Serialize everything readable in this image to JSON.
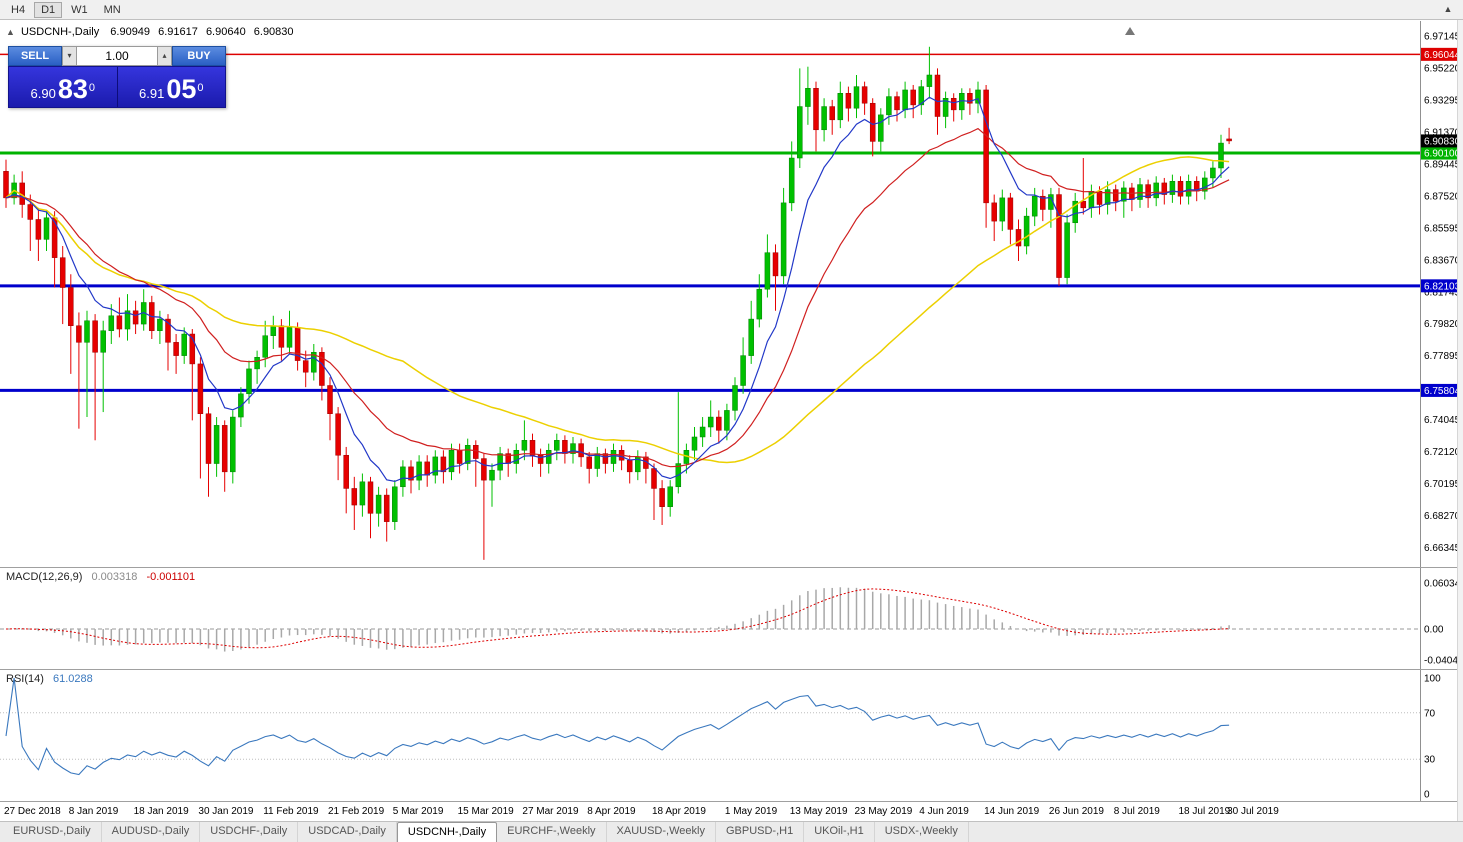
{
  "toolbar": {
    "periods": [
      "H4",
      "D1",
      "W1",
      "MN"
    ],
    "active": "D1",
    "overflow_icon": "chevron-up"
  },
  "chart_header": {
    "symbol": "USDCNH-,Daily",
    "open": "6.90949",
    "high": "6.91617",
    "low": "6.90640",
    "close": "6.90830"
  },
  "trade_panel": {
    "sell_label": "SELL",
    "buy_label": "BUY",
    "volume": "1.00",
    "sell_price": {
      "prefix": "6.90",
      "big": "83",
      "sup": "0"
    },
    "buy_price": {
      "prefix": "6.91",
      "big": "05",
      "sup": "0"
    }
  },
  "indicators": {
    "macd": {
      "label": "MACD(12,26,9)",
      "main_value": "0.003318",
      "signal_value": "-0.001101",
      "scale": [
        "0.060342",
        "0.00",
        "-0.040415"
      ],
      "scale_values": [
        0.060342,
        0,
        -0.040415
      ]
    },
    "rsi": {
      "label": "RSI(14)",
      "value": "61.0288",
      "scale": [
        "100",
        "70",
        "30",
        "0"
      ],
      "scale_values": [
        100,
        70,
        30,
        0
      ],
      "levels": [
        70,
        30
      ]
    }
  },
  "chart_data": {
    "type": "candlestick",
    "symbol": "USDCNH",
    "timeframe": "Daily",
    "price_axis": {
      "min": 6.6535,
      "max": 6.9745,
      "decimals": 5,
      "ticks": [
        "6.97145",
        "6.95220",
        "6.93295",
        "6.91370",
        "6.89445",
        "6.87520",
        "6.85595",
        "6.83670",
        "6.81745",
        "6.79820",
        "6.77895",
        "6.75970",
        "6.74045",
        "6.72120",
        "6.70195",
        "6.68270",
        "6.66345"
      ]
    },
    "hlines": [
      {
        "price": 6.96044,
        "label": "6.96044",
        "color": "#dd0000",
        "width": 1.5
      },
      {
        "price": 6.901,
        "label": "6.90100",
        "color": "#00b300",
        "width": 3
      },
      {
        "price": 6.82103,
        "label": "6.82103",
        "color": "#0000cc",
        "width": 3
      },
      {
        "price": 6.75804,
        "label": "6.75804",
        "color": "#0000cc",
        "width": 3
      }
    ],
    "current_price": {
      "value": 6.9083,
      "label": "6.90830",
      "bg": "#000000"
    },
    "colors": {
      "up": "#00c000",
      "down": "#e60000",
      "ma_fast": "#2238c8",
      "ma_mid": "#d02020",
      "ma_slow": "#ecd000",
      "macd_bar": "#a8a8a8",
      "macd_signal": "#dd0000",
      "rsi": "#3a78be"
    },
    "ma_periods": {
      "fast": 8,
      "mid": 21,
      "slow": 50
    },
    "x_axis": {
      "labels": [
        {
          "label": "27 Dec 2018",
          "i": 0
        },
        {
          "label": "8 Jan 2019",
          "i": 8
        },
        {
          "label": "18 Jan 2019",
          "i": 16
        },
        {
          "label": "30 Jan 2019",
          "i": 24
        },
        {
          "label": "11 Feb 2019",
          "i": 32
        },
        {
          "label": "21 Feb 2019",
          "i": 40
        },
        {
          "label": "5 Mar 2019",
          "i": 48
        },
        {
          "label": "15 Mar 2019",
          "i": 56
        },
        {
          "label": "27 Mar 2019",
          "i": 64
        },
        {
          "label": "8 Apr 2019",
          "i": 72
        },
        {
          "label": "18 Apr 2019",
          "i": 80
        },
        {
          "label": "1 May 2019",
          "i": 89
        },
        {
          "label": "13 May 2019",
          "i": 97
        },
        {
          "label": "23 May 2019",
          "i": 105
        },
        {
          "label": "4 Jun 2019",
          "i": 113
        },
        {
          "label": "14 Jun 2019",
          "i": 121
        },
        {
          "label": "26 Jun 2019",
          "i": 129
        },
        {
          "label": "8 Jul 2019",
          "i": 137
        },
        {
          "label": "18 Jul 2019",
          "i": 145
        },
        {
          "label": "30 Jul 2019",
          "i": 151
        }
      ]
    },
    "candles": [
      [
        6.89,
        6.897,
        6.868,
        6.874
      ],
      [
        6.874,
        6.888,
        6.87,
        6.883
      ],
      [
        6.883,
        6.89,
        6.862,
        6.87
      ],
      [
        6.87,
        6.876,
        6.842,
        6.861
      ],
      [
        6.861,
        6.868,
        6.836,
        6.849
      ],
      [
        6.849,
        6.866,
        6.842,
        6.862
      ],
      [
        6.862,
        6.866,
        6.82,
        6.838
      ],
      [
        6.838,
        6.845,
        6.798,
        6.82
      ],
      [
        6.82,
        6.828,
        6.768,
        6.797
      ],
      [
        6.797,
        6.805,
        6.735,
        6.787
      ],
      [
        6.787,
        6.806,
        6.742,
        6.8
      ],
      [
        6.8,
        6.804,
        6.728,
        6.781
      ],
      [
        6.781,
        6.8,
        6.745,
        6.794
      ],
      [
        6.794,
        6.81,
        6.786,
        6.803
      ],
      [
        6.803,
        6.814,
        6.79,
        6.795
      ],
      [
        6.795,
        6.816,
        6.788,
        6.806
      ],
      [
        6.806,
        6.812,
        6.792,
        6.798
      ],
      [
        6.798,
        6.819,
        6.794,
        6.811
      ],
      [
        6.811,
        6.815,
        6.789,
        6.794
      ],
      [
        6.794,
        6.806,
        6.786,
        6.801
      ],
      [
        6.801,
        6.804,
        6.77,
        6.787
      ],
      [
        6.787,
        6.792,
        6.768,
        6.779
      ],
      [
        6.779,
        6.796,
        6.774,
        6.792
      ],
      [
        6.792,
        6.795,
        6.74,
        6.774
      ],
      [
        6.774,
        6.778,
        6.705,
        6.744
      ],
      [
        6.744,
        6.748,
        6.694,
        6.714
      ],
      [
        6.714,
        6.742,
        6.706,
        6.737
      ],
      [
        6.737,
        6.74,
        6.697,
        6.709
      ],
      [
        6.709,
        6.746,
        6.702,
        6.742
      ],
      [
        6.742,
        6.76,
        6.736,
        6.756
      ],
      [
        6.756,
        6.776,
        6.75,
        6.771
      ],
      [
        6.771,
        6.782,
        6.762,
        6.778
      ],
      [
        6.778,
        6.8,
        6.772,
        6.791
      ],
      [
        6.791,
        6.803,
        6.783,
        6.797
      ],
      [
        6.797,
        6.801,
        6.776,
        6.784
      ],
      [
        6.784,
        6.806,
        6.78,
        6.796
      ],
      [
        6.796,
        6.799,
        6.77,
        6.776
      ],
      [
        6.776,
        6.782,
        6.76,
        6.769
      ],
      [
        6.769,
        6.786,
        6.764,
        6.781
      ],
      [
        6.781,
        6.784,
        6.752,
        6.761
      ],
      [
        6.761,
        6.766,
        6.728,
        6.744
      ],
      [
        6.744,
        6.748,
        6.704,
        6.719
      ],
      [
        6.719,
        6.724,
        6.684,
        6.699
      ],
      [
        6.699,
        6.706,
        6.674,
        6.689
      ],
      [
        6.689,
        6.708,
        6.682,
        6.703
      ],
      [
        6.703,
        6.706,
        6.669,
        6.684
      ],
      [
        6.684,
        6.7,
        6.676,
        6.695
      ],
      [
        6.695,
        6.699,
        6.667,
        6.679
      ],
      [
        6.679,
        6.704,
        6.674,
        6.7
      ],
      [
        6.7,
        6.716,
        6.694,
        6.712
      ],
      [
        6.712,
        6.716,
        6.696,
        6.704
      ],
      [
        6.704,
        6.719,
        6.698,
        6.715
      ],
      [
        6.715,
        6.719,
        6.7,
        6.707
      ],
      [
        6.707,
        6.722,
        6.702,
        6.718
      ],
      [
        6.718,
        6.722,
        6.702,
        6.709
      ],
      [
        6.709,
        6.726,
        6.704,
        6.722
      ],
      [
        6.722,
        6.726,
        6.708,
        6.714
      ],
      [
        6.714,
        6.729,
        6.71,
        6.725
      ],
      [
        6.725,
        6.728,
        6.7,
        6.717
      ],
      [
        6.717,
        6.72,
        6.656,
        6.704
      ],
      [
        6.704,
        6.714,
        6.688,
        6.71
      ],
      [
        6.71,
        6.724,
        6.704,
        6.72
      ],
      [
        6.72,
        6.723,
        6.706,
        6.714
      ],
      [
        6.714,
        6.726,
        6.708,
        6.722
      ],
      [
        6.722,
        6.74,
        6.716,
        6.728
      ],
      [
        6.728,
        6.732,
        6.712,
        6.719
      ],
      [
        6.719,
        6.723,
        6.706,
        6.714
      ],
      [
        6.714,
        6.726,
        6.708,
        6.722
      ],
      [
        6.722,
        6.732,
        6.716,
        6.728
      ],
      [
        6.728,
        6.731,
        6.714,
        6.72
      ],
      [
        6.72,
        6.73,
        6.714,
        6.726
      ],
      [
        6.726,
        6.729,
        6.712,
        6.718
      ],
      [
        6.718,
        6.721,
        6.702,
        6.711
      ],
      [
        6.711,
        6.724,
        6.706,
        6.72
      ],
      [
        6.72,
        6.723,
        6.708,
        6.714
      ],
      [
        6.714,
        6.726,
        6.709,
        6.722
      ],
      [
        6.722,
        6.725,
        6.71,
        6.716
      ],
      [
        6.716,
        6.719,
        6.702,
        6.709
      ],
      [
        6.709,
        6.722,
        6.704,
        6.718
      ],
      [
        6.718,
        6.721,
        6.702,
        6.711
      ],
      [
        6.711,
        6.714,
        6.68,
        6.699
      ],
      [
        6.699,
        6.704,
        6.677,
        6.688
      ],
      [
        6.688,
        6.704,
        6.682,
        6.7
      ],
      [
        6.7,
        6.757,
        6.696,
        6.714
      ],
      [
        6.714,
        6.726,
        6.708,
        6.722
      ],
      [
        6.722,
        6.736,
        6.716,
        6.73
      ],
      [
        6.73,
        6.742,
        6.724,
        6.736
      ],
      [
        6.736,
        6.752,
        6.73,
        6.742
      ],
      [
        6.742,
        6.746,
        6.726,
        6.734
      ],
      [
        6.734,
        6.75,
        6.728,
        6.746
      ],
      [
        6.746,
        6.766,
        6.74,
        6.761
      ],
      [
        6.761,
        6.79,
        6.756,
        6.779
      ],
      [
        6.779,
        6.812,
        6.774,
        6.801
      ],
      [
        6.801,
        6.828,
        6.796,
        6.819
      ],
      [
        6.819,
        6.852,
        6.814,
        6.841
      ],
      [
        6.841,
        6.846,
        6.806,
        6.827
      ],
      [
        6.827,
        6.88,
        6.822,
        6.871
      ],
      [
        6.871,
        6.908,
        6.866,
        6.898
      ],
      [
        6.898,
        6.952,
        6.892,
        6.929
      ],
      [
        6.929,
        6.953,
        6.918,
        6.94
      ],
      [
        6.94,
        6.944,
        6.902,
        6.915
      ],
      [
        6.915,
        6.934,
        6.908,
        6.929
      ],
      [
        6.929,
        6.933,
        6.912,
        6.921
      ],
      [
        6.921,
        6.944,
        6.916,
        6.937
      ],
      [
        6.937,
        6.941,
        6.92,
        6.928
      ],
      [
        6.928,
        6.948,
        6.922,
        6.941
      ],
      [
        6.941,
        6.944,
        6.924,
        6.931
      ],
      [
        6.931,
        6.934,
        6.899,
        6.908
      ],
      [
        6.908,
        6.928,
        6.902,
        6.924
      ],
      [
        6.924,
        6.94,
        6.918,
        6.935
      ],
      [
        6.935,
        6.938,
        6.92,
        6.927
      ],
      [
        6.927,
        6.944,
        6.922,
        6.939
      ],
      [
        6.939,
        6.942,
        6.922,
        6.93
      ],
      [
        6.93,
        6.945,
        6.924,
        6.941
      ],
      [
        6.941,
        6.965,
        6.934,
        6.948
      ],
      [
        6.948,
        6.952,
        6.912,
        6.923
      ],
      [
        6.923,
        6.938,
        6.916,
        6.934
      ],
      [
        6.934,
        6.937,
        6.92,
        6.927
      ],
      [
        6.927,
        6.94,
        6.921,
        6.937
      ],
      [
        6.937,
        6.94,
        6.924,
        6.931
      ],
      [
        6.931,
        6.944,
        6.925,
        6.939
      ],
      [
        6.939,
        6.942,
        6.856,
        6.871
      ],
      [
        6.871,
        6.876,
        6.848,
        6.86
      ],
      [
        6.86,
        6.879,
        6.854,
        6.874
      ],
      [
        6.874,
        6.877,
        6.846,
        6.855
      ],
      [
        6.855,
        6.861,
        6.836,
        6.845
      ],
      [
        6.845,
        6.868,
        6.84,
        6.863
      ],
      [
        6.863,
        6.88,
        6.857,
        6.875
      ],
      [
        6.875,
        6.879,
        6.86,
        6.867
      ],
      [
        6.867,
        6.88,
        6.856,
        6.876
      ],
      [
        6.876,
        6.88,
        6.821,
        6.826
      ],
      [
        6.826,
        6.864,
        6.822,
        6.859
      ],
      [
        6.859,
        6.877,
        6.853,
        6.872
      ],
      [
        6.872,
        6.898,
        6.864,
        6.868
      ],
      [
        6.868,
        6.882,
        6.862,
        6.878
      ],
      [
        6.878,
        6.881,
        6.864,
        6.87
      ],
      [
        6.87,
        6.884,
        6.864,
        6.879
      ],
      [
        6.879,
        6.882,
        6.866,
        6.872
      ],
      [
        6.872,
        6.884,
        6.862,
        6.88
      ],
      [
        6.88,
        6.883,
        6.866,
        6.873
      ],
      [
        6.873,
        6.886,
        6.868,
        6.882
      ],
      [
        6.882,
        6.885,
        6.868,
        6.874
      ],
      [
        6.874,
        6.887,
        6.869,
        6.883
      ],
      [
        6.883,
        6.886,
        6.87,
        6.876
      ],
      [
        6.876,
        6.888,
        6.871,
        6.884
      ],
      [
        6.884,
        6.887,
        6.87,
        6.875
      ],
      [
        6.875,
        6.888,
        6.87,
        6.884
      ],
      [
        6.884,
        6.887,
        6.872,
        6.878
      ],
      [
        6.878,
        6.89,
        6.873,
        6.886
      ],
      [
        6.886,
        6.896,
        6.88,
        6.892
      ],
      [
        6.892,
        6.912,
        6.886,
        6.907
      ],
      [
        6.9095,
        6.9162,
        6.9064,
        6.9083
      ]
    ]
  },
  "tabs": {
    "items": [
      "EURUSD-,Daily",
      "AUDUSD-,Daily",
      "USDCHF-,Daily",
      "USDCAD-,Daily",
      "USDCNH-,Daily",
      "EURCHF-,Weekly",
      "XAUUSD-,Weekly",
      "GBPUSD-,H1",
      "UKOil-,H1",
      "USDX-,Weekly"
    ],
    "active_index": 4
  }
}
